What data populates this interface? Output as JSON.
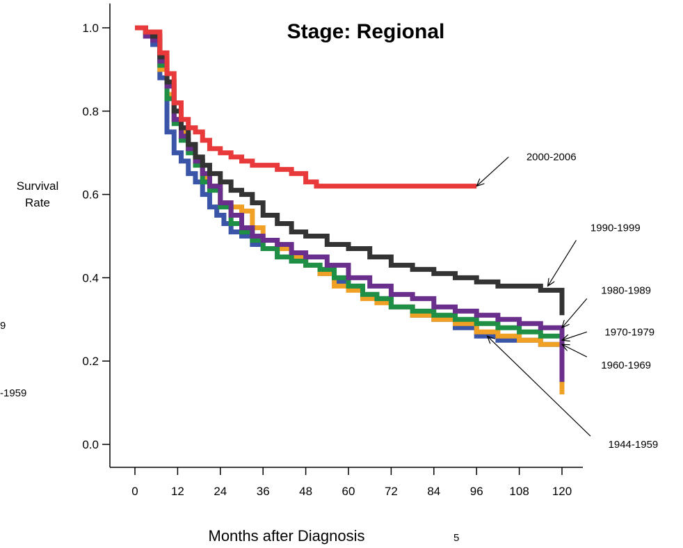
{
  "chart_data": {
    "type": "line",
    "step": true,
    "title": "Stage: Regional",
    "xlabel": "Months after Diagnosis",
    "ylabel": [
      "Survival",
      "Rate"
    ],
    "xlim": [
      -6,
      126
    ],
    "ylim": [
      -0.04,
      1.06
    ],
    "xticks": [
      0,
      12,
      24,
      36,
      48,
      60,
      72,
      84,
      96,
      108,
      120
    ],
    "xtick_labels": [
      "0",
      "12",
      "24",
      "36",
      "48",
      "60",
      "72",
      "84",
      "96",
      "108",
      "120"
    ],
    "yticks": [
      0.0,
      0.2,
      0.4,
      0.6,
      0.8,
      1.0
    ],
    "ytick_labels": [
      "0.0",
      "0.2",
      "0.4",
      "0.6",
      "0.8",
      "1.0"
    ],
    "grid": false,
    "legend": "annotations",
    "clipped_edge_text": [
      "9",
      "-1959",
      "5"
    ],
    "series": [
      {
        "name": "1944-1959",
        "color": "#3a55a8",
        "x": [
          0,
          3,
          5,
          7,
          9,
          11,
          13,
          15,
          17,
          19,
          21,
          23,
          25,
          27,
          30,
          33,
          36,
          40,
          44,
          48,
          52,
          56,
          60,
          64,
          68,
          72,
          78,
          84,
          90,
          96,
          102,
          108,
          114,
          120,
          120
        ],
        "y": [
          1.0,
          0.98,
          0.96,
          0.88,
          0.75,
          0.7,
          0.68,
          0.65,
          0.63,
          0.6,
          0.57,
          0.55,
          0.53,
          0.51,
          0.5,
          0.48,
          0.47,
          0.45,
          0.44,
          0.43,
          0.41,
          0.39,
          0.38,
          0.36,
          0.35,
          0.33,
          0.31,
          0.3,
          0.28,
          0.26,
          0.25,
          0.25,
          0.24,
          0.24,
          0.14
        ]
      },
      {
        "name": "1960-1969",
        "color": "#f0a025",
        "x": [
          0,
          3,
          5,
          7,
          9,
          11,
          13,
          15,
          17,
          19,
          21,
          24,
          27,
          30,
          33,
          36,
          40,
          44,
          48,
          52,
          56,
          60,
          64,
          68,
          72,
          78,
          84,
          90,
          96,
          102,
          108,
          114,
          120,
          120
        ],
        "y": [
          1.0,
          0.98,
          0.97,
          0.9,
          0.84,
          0.78,
          0.75,
          0.71,
          0.68,
          0.64,
          0.62,
          0.58,
          0.57,
          0.56,
          0.52,
          0.49,
          0.47,
          0.45,
          0.43,
          0.41,
          0.38,
          0.37,
          0.35,
          0.34,
          0.33,
          0.31,
          0.3,
          0.29,
          0.27,
          0.26,
          0.25,
          0.24,
          0.24,
          0.12
        ]
      },
      {
        "name": "1970-1979",
        "color": "#1e8f45",
        "x": [
          0,
          3,
          5,
          7,
          9,
          11,
          13,
          15,
          17,
          19,
          21,
          24,
          27,
          30,
          33,
          36,
          40,
          44,
          48,
          52,
          56,
          60,
          64,
          68,
          72,
          78,
          84,
          90,
          96,
          102,
          108,
          114,
          120,
          120
        ],
        "y": [
          1.0,
          0.98,
          0.97,
          0.91,
          0.83,
          0.77,
          0.73,
          0.7,
          0.67,
          0.63,
          0.61,
          0.57,
          0.53,
          0.51,
          0.49,
          0.47,
          0.45,
          0.44,
          0.43,
          0.42,
          0.4,
          0.38,
          0.36,
          0.35,
          0.33,
          0.32,
          0.31,
          0.3,
          0.29,
          0.28,
          0.27,
          0.26,
          0.25,
          0.15
        ]
      },
      {
        "name": "1980-1989",
        "color": "#6a2e8c",
        "x": [
          0,
          3,
          5,
          7,
          9,
          11,
          13,
          15,
          17,
          19,
          21,
          24,
          27,
          30,
          33,
          36,
          40,
          44,
          48,
          54,
          60,
          66,
          72,
          78,
          84,
          90,
          96,
          102,
          108,
          114,
          120,
          120
        ],
        "y": [
          1.0,
          0.98,
          0.97,
          0.92,
          0.86,
          0.78,
          0.74,
          0.71,
          0.68,
          0.65,
          0.62,
          0.58,
          0.55,
          0.52,
          0.5,
          0.49,
          0.48,
          0.46,
          0.45,
          0.43,
          0.4,
          0.38,
          0.36,
          0.35,
          0.33,
          0.32,
          0.31,
          0.3,
          0.29,
          0.28,
          0.28,
          0.15
        ]
      },
      {
        "name": "1990-1999",
        "color": "#333333",
        "x": [
          0,
          3,
          5,
          7,
          9,
          11,
          13,
          15,
          17,
          19,
          21,
          24,
          27,
          30,
          33,
          36,
          40,
          44,
          48,
          54,
          60,
          66,
          72,
          78,
          84,
          90,
          96,
          102,
          108,
          114,
          120,
          120
        ],
        "y": [
          1.0,
          0.99,
          0.98,
          0.93,
          0.87,
          0.8,
          0.76,
          0.72,
          0.69,
          0.67,
          0.65,
          0.63,
          0.61,
          0.6,
          0.58,
          0.55,
          0.53,
          0.51,
          0.5,
          0.48,
          0.47,
          0.45,
          0.43,
          0.42,
          0.41,
          0.4,
          0.39,
          0.38,
          0.38,
          0.37,
          0.37,
          0.31
        ]
      },
      {
        "name": "2000-2006",
        "color": "#e83a3a",
        "x": [
          0,
          3,
          5,
          7,
          9,
          11,
          13,
          15,
          17,
          19,
          21,
          24,
          27,
          30,
          33,
          36,
          40,
          44,
          48,
          51,
          96
        ],
        "y": [
          1.0,
          0.99,
          0.99,
          0.94,
          0.89,
          0.82,
          0.78,
          0.76,
          0.75,
          0.73,
          0.71,
          0.7,
          0.69,
          0.68,
          0.67,
          0.67,
          0.66,
          0.65,
          0.63,
          0.62,
          0.62
        ]
      }
    ],
    "annotations": [
      {
        "text": "2000-2006",
        "label_at": [
          110,
          0.69
        ],
        "arrow_from": [
          105,
          0.69
        ],
        "arrow_to": [
          96,
          0.62
        ]
      },
      {
        "text": "1990-1999",
        "label_at": [
          128,
          0.52
        ],
        "arrow_from": [
          124,
          0.49
        ],
        "arrow_to": [
          116,
          0.38
        ]
      },
      {
        "text": "1980-1989",
        "label_at": [
          131,
          0.37
        ],
        "arrow_from": [
          127,
          0.35
        ],
        "arrow_to": [
          120,
          0.28
        ]
      },
      {
        "text": "1970-1979",
        "label_at": [
          132,
          0.27
        ],
        "arrow_from": [
          127,
          0.27
        ],
        "arrow_to": [
          120,
          0.25
        ]
      },
      {
        "text": "1960-1969",
        "label_at": [
          131,
          0.19
        ],
        "arrow_from": [
          127,
          0.21
        ],
        "arrow_to": [
          120,
          0.24
        ]
      },
      {
        "text": "1944-1959",
        "label_at": [
          133,
          0.0
        ],
        "arrow_from": [
          128,
          0.02
        ],
        "arrow_to": [
          99,
          0.26
        ]
      }
    ]
  }
}
